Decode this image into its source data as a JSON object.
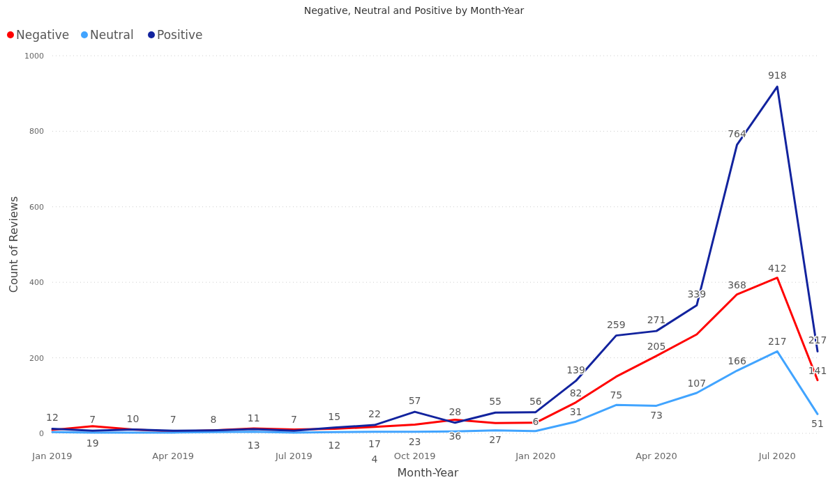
{
  "chart_data": {
    "type": "line",
    "title": "Negative, Neutral and Positive by Month-Year",
    "xlabel": "Month-Year",
    "ylabel": "Count of Reviews",
    "categories": [
      "Jan 2019",
      null,
      null,
      "Apr 2019",
      null,
      null,
      "Jul 2019",
      null,
      null,
      "Oct 2019",
      null,
      null,
      "Jan 2020",
      null,
      null,
      "Apr 2020",
      null,
      null,
      "Jul 2020",
      null
    ],
    "series": [
      {
        "name": "Negative",
        "color": "#ff0000",
        "values": [
          9,
          19,
          10,
          5,
          8,
          13,
          10,
          12,
          17,
          23,
          36,
          27,
          28,
          82,
          150,
          205,
          262,
          368,
          412,
          141
        ],
        "value_labels": [
          null,
          "19",
          null,
          null,
          null,
          "13",
          null,
          "12",
          "17",
          "23",
          "36",
          "27",
          null,
          "82",
          null,
          "205",
          null,
          "368",
          "412",
          "141"
        ]
      },
      {
        "name": "Neutral",
        "color": "#41a4ff",
        "values": [
          3,
          2,
          2,
          2,
          3,
          4,
          2,
          3,
          4,
          4,
          5,
          8,
          6,
          31,
          75,
          73,
          107,
          166,
          217,
          51
        ],
        "value_labels": [
          null,
          null,
          null,
          null,
          null,
          null,
          null,
          null,
          "4",
          null,
          null,
          null,
          "6",
          "31",
          "75",
          "73",
          "107",
          "166",
          "217",
          "51"
        ]
      },
      {
        "name": "Positive",
        "color": "#12239e",
        "values": [
          12,
          7,
          10,
          7,
          8,
          11,
          7,
          15,
          22,
          57,
          28,
          55,
          56,
          139,
          259,
          271,
          339,
          764,
          918,
          217
        ],
        "value_labels": [
          "12",
          "7",
          "10",
          "7",
          "8",
          "11",
          "7",
          "15",
          "22",
          "57",
          "28",
          "55",
          "56",
          "139",
          "259",
          "271",
          "339",
          "764",
          "918",
          "217"
        ]
      }
    ],
    "ylim": [
      0,
      1000
    ],
    "yticks": [
      0,
      200,
      400,
      600,
      800,
      1000
    ],
    "grid": "y",
    "legend": "top left",
    "line_style": "solid",
    "marker": "none"
  }
}
